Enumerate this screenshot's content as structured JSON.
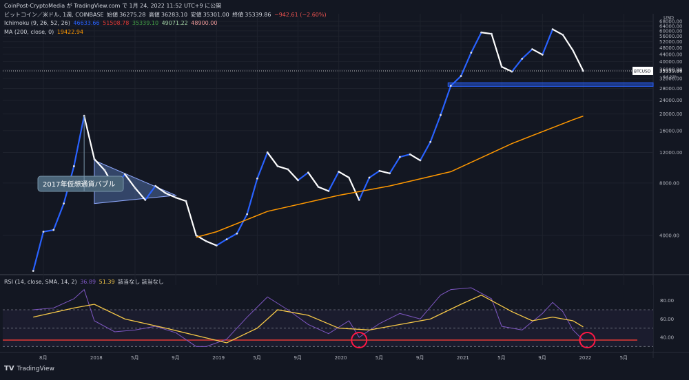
{
  "header": {
    "source_line": "CoinPost-CryptoMedia が TradingView.com で 1月 24, 2022 11:52 UTC+9 に公開",
    "symbol_line": "ビットコイン／米ドル, 1週, COINBASE",
    "open_label": "始値",
    "open_value": "36275.28",
    "high_label": "高値",
    "high_value": "36283.10",
    "low_label": "安値",
    "low_value": "35301.00",
    "close_label": "終値",
    "close_value": "35339.86",
    "change": "−942.61 (−2.60%)",
    "ichimoku_label": "Ichimoku (9, 26, 52, 26)",
    "ichimoku_values": [
      "46633.66",
      "51508.78",
      "35339.10",
      "49071.22",
      "48900.00"
    ],
    "ma_label": "MA (200, close, 0)",
    "ma_value": "19422.94"
  },
  "rsi_header": {
    "label": "RSI (14, close, SMA, 14, 2)",
    "rsi_value": "36.89",
    "sma_value": "51.39",
    "extra": "該当なし  該当なし"
  },
  "annotation": "2017年仮想通貨バブル",
  "price_tag": {
    "symbol": "BTCUSD",
    "value": "35339.86",
    "countdown": "6d 22h"
  },
  "currency_label": "USD",
  "footer": {
    "brand": "TradingView"
  },
  "colors": {
    "background": "#131722",
    "candle_up": "#2962ff",
    "candle_down": "#ffffff",
    "conversion": "#2962ff",
    "base": "#e53935",
    "lagging": "#43a047",
    "span_a": "#a5d6a7",
    "span_b": "#ef9a9a",
    "ma": "#ff9800",
    "rsi": "#7e57c2",
    "rsi_sma": "#f7c948",
    "support_zone": "#2962ff",
    "circle": "#ff1744"
  },
  "chart_data": [
    {
      "type": "line",
      "title": "",
      "y_scale": "log",
      "y_ticks": [
        4000,
        8000,
        12000,
        16000,
        20000,
        24000,
        28000,
        32000,
        36000,
        40000,
        44000,
        48000,
        52000,
        56000,
        60000,
        64000,
        68000
      ],
      "x_ticks": [
        "8月",
        "2018",
        "5月",
        "9月",
        "2019",
        "5月",
        "9月",
        "2020",
        "5月",
        "9月",
        "2021",
        "5月",
        "9月",
        "2022",
        "5月"
      ],
      "series": [
        {
          "key": "price",
          "points": [
            [
              "2017-07",
              2500
            ],
            [
              "2017-08",
              4200
            ],
            [
              "2017-09",
              4300
            ],
            [
              "2017-10",
              6100
            ],
            [
              "2017-11",
              10000
            ],
            [
              "2017-12",
              19500
            ],
            [
              "2018-01",
              11000
            ],
            [
              "2018-02",
              9500
            ],
            [
              "2018-03",
              7500
            ],
            [
              "2018-04",
              9000
            ],
            [
              "2018-05",
              7500
            ],
            [
              "2018-06",
              6400
            ],
            [
              "2018-07",
              7700
            ],
            [
              "2018-08",
              7000
            ],
            [
              "2018-09",
              6600
            ],
            [
              "2018-10",
              6300
            ],
            [
              "2018-11",
              4000
            ],
            [
              "2018-12",
              3700
            ],
            [
              "2019-01",
              3500
            ],
            [
              "2019-02",
              3800
            ],
            [
              "2019-03",
              4100
            ],
            [
              "2019-04",
              5300
            ],
            [
              "2019-05",
              8500
            ],
            [
              "2019-06",
              12000
            ],
            [
              "2019-07",
              10000
            ],
            [
              "2019-08",
              9600
            ],
            [
              "2019-09",
              8300
            ],
            [
              "2019-10",
              9200
            ],
            [
              "2019-11",
              7600
            ],
            [
              "2019-12",
              7200
            ],
            [
              "2020-01",
              9300
            ],
            [
              "2020-02",
              8600
            ],
            [
              "2020-03",
              6400
            ],
            [
              "2020-04",
              8600
            ],
            [
              "2020-05",
              9400
            ],
            [
              "2020-06",
              9100
            ],
            [
              "2020-07",
              11300
            ],
            [
              "2020-08",
              11700
            ],
            [
              "2020-09",
              10800
            ],
            [
              "2020-10",
              13800
            ],
            [
              "2020-11",
              19700
            ],
            [
              "2020-12",
              29000
            ],
            [
              "2021-01",
              33000
            ],
            [
              "2021-02",
              45000
            ],
            [
              "2021-03",
              58800
            ],
            [
              "2021-04",
              57700
            ],
            [
              "2021-05",
              37300
            ],
            [
              "2021-06",
              35000
            ],
            [
              "2021-07",
              41500
            ],
            [
              "2021-08",
              47100
            ],
            [
              "2021-09",
              43800
            ],
            [
              "2021-10",
              61300
            ],
            [
              "2021-11",
              57000
            ],
            [
              "2021-12",
              46300
            ],
            [
              "2022-01",
              35340
            ]
          ]
        },
        {
          "key": "ma200",
          "points": [
            [
              "2018-11",
              3900
            ],
            [
              "2019-01",
              4200
            ],
            [
              "2019-06",
              5500
            ],
            [
              "2020-01",
              6800
            ],
            [
              "2020-06",
              7700
            ],
            [
              "2020-12",
              9300
            ],
            [
              "2021-06",
              13500
            ],
            [
              "2021-12",
              18500
            ],
            [
              "2022-01",
              19423
            ]
          ]
        }
      ],
      "annotations": [
        {
          "text": "2017年仮想通貨バブル",
          "at": [
            "2017-12",
            19500
          ]
        }
      ],
      "support_zone": [
        28800,
        30200
      ],
      "last_price": 35339.86
    },
    {
      "type": "line",
      "title": "",
      "y_ticks": [
        40,
        60,
        80
      ],
      "levels": [
        30,
        37,
        50,
        70
      ],
      "series": [
        {
          "key": "rsi",
          "points": [
            [
              "2017-07",
              70
            ],
            [
              "2017-09",
              72
            ],
            [
              "2017-11",
              82
            ],
            [
              "2017-12",
              92
            ],
            [
              "2018-01",
              58
            ],
            [
              "2018-03",
              46
            ],
            [
              "2018-05",
              48
            ],
            [
              "2018-07",
              52
            ],
            [
              "2018-09",
              45
            ],
            [
              "2018-11",
              30
            ],
            [
              "2018-12",
              30
            ],
            [
              "2019-02",
              38
            ],
            [
              "2019-04",
              62
            ],
            [
              "2019-06",
              84
            ],
            [
              "2019-08",
              70
            ],
            [
              "2019-10",
              54
            ],
            [
              "2019-12",
              44
            ],
            [
              "2020-02",
              58
            ],
            [
              "2020-03",
              40
            ],
            [
              "2020-05",
              55
            ],
            [
              "2020-07",
              66
            ],
            [
              "2020-09",
              60
            ],
            [
              "2020-11",
              86
            ],
            [
              "2020-12",
              92
            ],
            [
              "2021-02",
              94
            ],
            [
              "2021-04",
              82
            ],
            [
              "2021-05",
              52
            ],
            [
              "2021-07",
              48
            ],
            [
              "2021-09",
              66
            ],
            [
              "2021-10",
              78
            ],
            [
              "2021-11",
              68
            ],
            [
              "2021-12",
              48
            ],
            [
              "2022-01",
              36.89
            ]
          ]
        },
        {
          "key": "rsi_sma",
          "points": [
            [
              "2017-07",
              62
            ],
            [
              "2017-11",
              72
            ],
            [
              "2018-01",
              76
            ],
            [
              "2018-04",
              60
            ],
            [
              "2018-08",
              50
            ],
            [
              "2018-11",
              42
            ],
            [
              "2019-02",
              34
            ],
            [
              "2019-05",
              50
            ],
            [
              "2019-07",
              70
            ],
            [
              "2019-10",
              64
            ],
            [
              "2020-01",
              50
            ],
            [
              "2020-04",
              48
            ],
            [
              "2020-07",
              54
            ],
            [
              "2020-10",
              60
            ],
            [
              "2021-01",
              76
            ],
            [
              "2021-03",
              86
            ],
            [
              "2021-06",
              68
            ],
            [
              "2021-08",
              58
            ],
            [
              "2021-10",
              62
            ],
            [
              "2021-12",
              58
            ],
            [
              "2022-01",
              51.39
            ]
          ]
        }
      ],
      "highlights": [
        "2020-03",
        "2022-01"
      ]
    }
  ]
}
